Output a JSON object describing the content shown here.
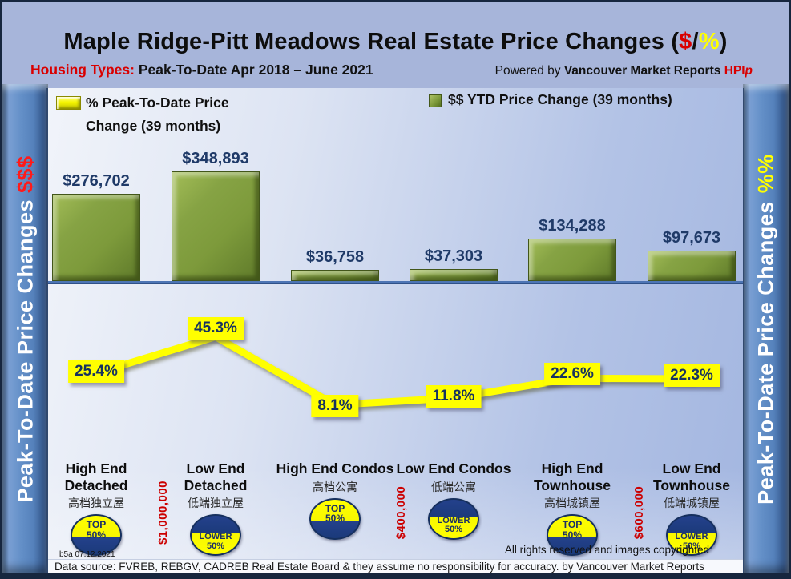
{
  "header": {
    "title_prefix": "Maple Ridge-Pitt Meadows Real Estate Price Changes (",
    "title_dollar": "$",
    "title_slash": "/",
    "title_percent": "%",
    "title_suffix": ")",
    "subtitle_label": "Housing Types:",
    "subtitle_text": " Peak-To-Date Apr 2018 – June 2021",
    "powered_prefix": "Powered by ",
    "powered_brand": "Vancouver Market Reports ",
    "powered_hpi": "HPI",
    "powered_hpi_suffix": "p"
  },
  "side_labels": {
    "left_text": "Peak-To-Date Price Changes",
    "left_suffix": "$$$",
    "right_text": "Peak-To-Date  Price  Changes",
    "right_suffix": "%%"
  },
  "legend": {
    "line_label": "% Peak-To-Date Price Change (39 months)",
    "bar_label": "$$ YTD Price Change (39 months)"
  },
  "chart_data": {
    "type": "combo",
    "categories": [
      "High End Detached",
      "Low End Detached",
      "High End Condos",
      "Low End Condos",
      "High End Townhouse",
      "Low End Townhouse"
    ],
    "categories_zh": [
      "高档独立屋",
      "低端独立屋",
      "高档公寓",
      "低端公寓",
      "高档城镇屋",
      "低端城镇屋"
    ],
    "series": [
      {
        "name": "$$ YTD Price Change (39 months)",
        "type": "bar",
        "values": [
          276702,
          348893,
          36758,
          37303,
          134288,
          97673
        ],
        "labels": [
          "$276,702",
          "$348,893",
          "$36,758",
          "$37,303",
          "$134,288",
          "$97,673"
        ]
      },
      {
        "name": "% Peak-To-Date Price Change (39 months)",
        "type": "line",
        "values": [
          25.4,
          45.3,
          8.1,
          11.8,
          22.6,
          22.3
        ],
        "labels": [
          "25.4%",
          "45.3%",
          "8.1%",
          "11.8%",
          "22.6%",
          "22.3%"
        ]
      }
    ],
    "badges": [
      {
        "line1": "TOP",
        "line2": "50%",
        "type": "top"
      },
      {
        "line1": "LOWER",
        "line2": "50%",
        "type": "lower"
      },
      {
        "line1": "TOP",
        "line2": "50%",
        "type": "top"
      },
      {
        "line1": "LOWER",
        "line2": "50%",
        "type": "lower"
      },
      {
        "line1": "TOP",
        "line2": "50%",
        "type": "top"
      },
      {
        "line1": "LOWER",
        "line2": "50%",
        "type": "lower"
      }
    ],
    "price_thresholds": [
      {
        "label": "$1,000,000",
        "between": [
          0,
          1
        ]
      },
      {
        "label": "$400,000",
        "between": [
          2,
          3
        ]
      },
      {
        "label": "$600,000",
        "between": [
          4,
          5
        ]
      }
    ],
    "ylim_bar": [
      0,
      360000
    ],
    "ylim_line": [
      0,
      50
    ],
    "legend_position": "top",
    "grid": false
  },
  "footer": {
    "note": "b5a 07.12.2021",
    "rights": "All rights reserved and  images copyrighted",
    "source": "Data source: FVREB, REBGV, CADREB Real Estate Board & they assume no responsibility for accuracy. by Vancouver Market Reports"
  },
  "colors": {
    "background": "#a7b5da",
    "panel_light": "#f1f4fa",
    "panel_blue": "#a3b6e0",
    "bar_green": "#7d9a3b",
    "line_yellow": "#ffff00",
    "navy_text": "#1f3a68",
    "accent_red": "#d90000",
    "divider_blue": "#4d75b5",
    "pillar_blue": "#5581bb",
    "badge_navy": "#1b3a7a"
  }
}
